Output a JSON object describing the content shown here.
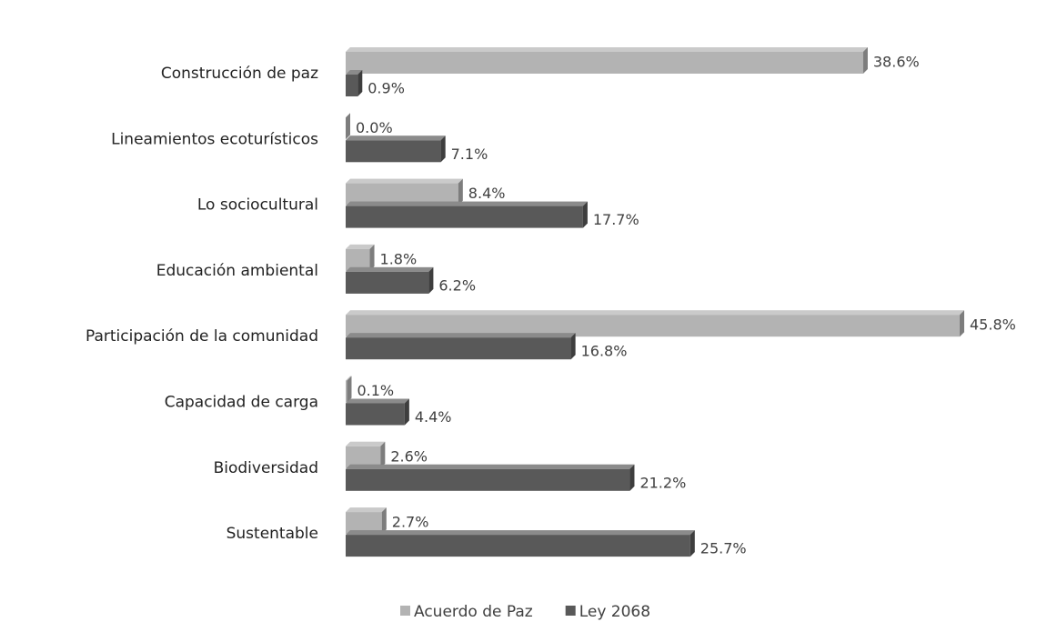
{
  "chart_data": {
    "type": "bar",
    "orientation": "horizontal",
    "categories": [
      "Construcción de paz",
      "Lineamientos ecoturísticos",
      "Lo sociocultural",
      "Educación ambiental",
      "Participación de la comunidad",
      "Capacidad de carga",
      "Biodiversidad",
      "Sustentable"
    ],
    "series": [
      {
        "name": "Acuerdo de Paz",
        "color": "#b3b3b3",
        "values": [
          38.6,
          0.0,
          8.4,
          1.8,
          45.8,
          0.1,
          2.6,
          2.7
        ],
        "value_labels": [
          "38.6%",
          "0.0%",
          "8.4%",
          "1.8%",
          "45.8%",
          "0.1%",
          "2.6%",
          "2.7%"
        ]
      },
      {
        "name": "Ley 2068",
        "color": "#595959",
        "values": [
          0.9,
          7.1,
          17.7,
          6.2,
          16.8,
          4.4,
          21.2,
          25.7
        ],
        "value_labels": [
          "0.9%",
          "7.1%",
          "17.7%",
          "6.2%",
          "16.8%",
          "4.4%",
          "21.2%",
          "25.7%"
        ]
      }
    ],
    "legend": "bottom"
  }
}
